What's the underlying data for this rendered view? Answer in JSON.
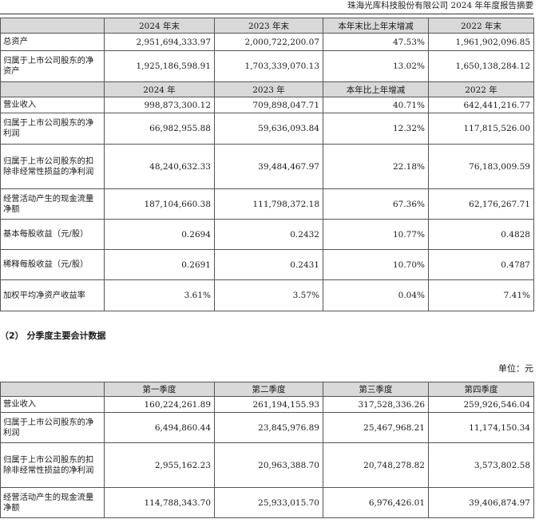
{
  "header": {
    "title": "珠海光库科技股份有限公司 2024 年年度报告摘要"
  },
  "table1": {
    "head_a": [
      "",
      "2024 年末",
      "2023 年末",
      "本年末比上年末增减",
      "2022 年末"
    ],
    "rows_a": [
      {
        "label": "总资产",
        "v": [
          "2,951,694,333.97",
          "2,000,722,200.07",
          "47.53%",
          "1,961,902,096.85"
        ]
      },
      {
        "label": "归属于上市公司股东的净资产",
        "v": [
          "1,925,186,598.91",
          "1,703,339,070.13",
          "13.02%",
          "1,650,138,284.12"
        ]
      }
    ],
    "head_b": [
      "",
      "2024 年",
      "2023 年",
      "本年比上年增减",
      "2022 年"
    ],
    "rows_b": [
      {
        "label": "营业收入",
        "v": [
          "998,873,300.12",
          "709,898,047.71",
          "40.71%",
          "642,441,216.77"
        ]
      },
      {
        "label": "归属于上市公司股东的净利润",
        "v": [
          "66,982,955.88",
          "59,636,093.84",
          "12.32%",
          "117,815,526.00"
        ]
      },
      {
        "label": "归属于上市公司股东的扣除非经常性损益的净利润",
        "v": [
          "48,240,632.33",
          "39,484,467.97",
          "22.18%",
          "76,183,009.59"
        ]
      },
      {
        "label": "经营活动产生的现金流量净额",
        "v": [
          "187,104,660.38",
          "111,798,372.18",
          "67.36%",
          "62,176,267.71"
        ]
      },
      {
        "label": "基本每股收益（元/股）",
        "v": [
          "0.2694",
          "0.2432",
          "10.77%",
          "0.4828"
        ]
      },
      {
        "label": "稀释每股收益（元/股）",
        "v": [
          "0.2691",
          "0.2431",
          "10.70%",
          "0.4787"
        ]
      },
      {
        "label": "加权平均净资产收益率",
        "v": [
          "3.61%",
          "3.57%",
          "0.04%",
          "7.41%"
        ]
      }
    ]
  },
  "section2": {
    "title": "（2） 分季度主要会计数据",
    "unit": "单位：元"
  },
  "table2": {
    "head": [
      "",
      "第一季度",
      "第二季度",
      "第三季度",
      "第四季度"
    ],
    "rows": [
      {
        "label": "营业收入",
        "v": [
          "160,224,261.89",
          "261,194,155.93",
          "317,528,336.26",
          "259,926,546.04"
        ]
      },
      {
        "label": "归属于上市公司股东的净利润",
        "v": [
          "6,494,860.44",
          "23,845,976.89",
          "25,467,968.21",
          "11,174,150.34"
        ]
      },
      {
        "label": "归属于上市公司股东的扣除非经常性损益的净利润",
        "v": [
          "2,955,162.23",
          "20,963,388.70",
          "20,748,278.82",
          "3,573,802.58"
        ]
      },
      {
        "label": "经营活动产生的现金流量净额",
        "v": [
          "114,788,343.70",
          "25,933,015.70",
          "6,976,426.01",
          "39,406,874.97"
        ]
      }
    ]
  }
}
